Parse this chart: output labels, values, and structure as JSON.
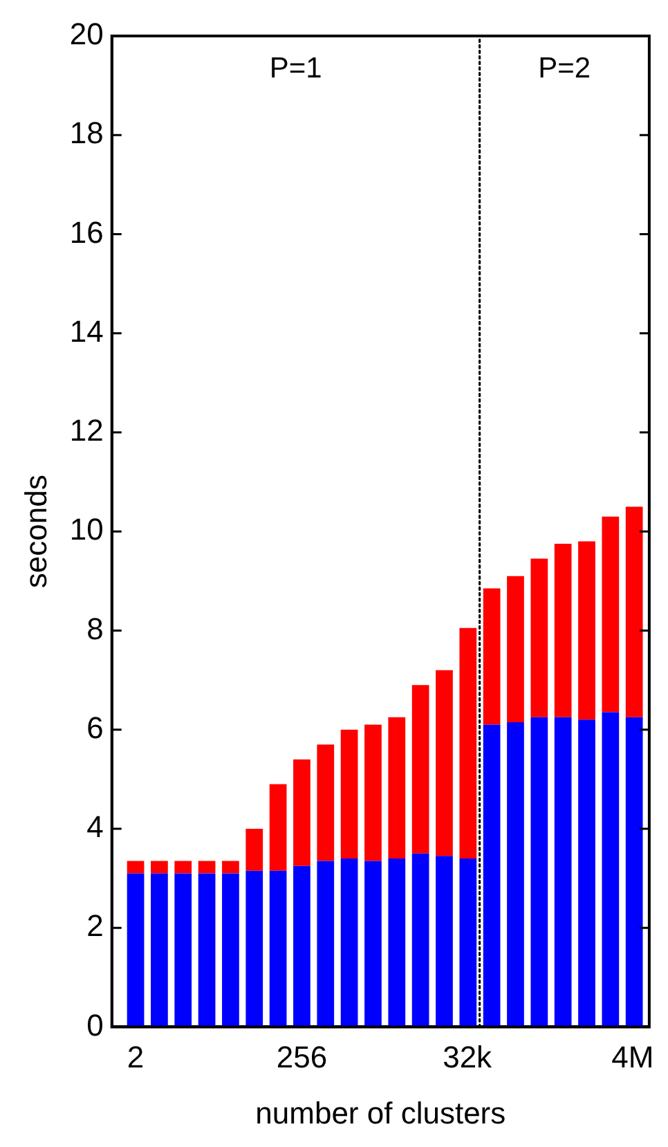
{
  "chart_data": {
    "type": "bar",
    "stacked": true,
    "log": "x",
    "xlabel": "number of clusters",
    "ylabel": "seconds",
    "x": [
      2,
      4,
      8,
      16,
      32,
      64,
      128,
      256,
      512,
      1024,
      2048,
      4096,
      8192,
      16384,
      32768,
      65536,
      131072,
      262144,
      524288,
      1048576,
      2097152,
      4194304
    ],
    "series": [
      {
        "color": "#0000ff",
        "values": [
          3.1,
          3.1,
          3.1,
          3.1,
          3.1,
          3.15,
          3.15,
          3.25,
          3.35,
          3.4,
          3.35,
          3.4,
          3.5,
          3.45,
          3.4,
          6.1,
          6.15,
          6.25,
          6.25,
          6.2,
          6.35,
          6.25
        ]
      },
      {
        "color": "#ff0000",
        "values": [
          0.25,
          0.25,
          0.25,
          0.25,
          0.25,
          0.85,
          1.75,
          2.15,
          2.35,
          2.6,
          2.75,
          2.85,
          3.4,
          3.75,
          4.65,
          2.75,
          2.95,
          3.2,
          3.5,
          3.6,
          3.95,
          4.25
        ]
      }
    ],
    "xlim": [
      1,
      6500000
    ],
    "xticks": [
      {
        "value": 2,
        "label": "2"
      },
      {
        "value": 256,
        "label": "256"
      },
      {
        "value": 32000,
        "label": "32k"
      },
      {
        "value": 4000000,
        "label": "4M"
      }
    ],
    "ylim": [
      0,
      20
    ],
    "yticks": [
      0,
      2,
      4,
      6,
      8,
      10,
      12,
      14,
      16,
      18,
      20
    ],
    "ref_lines": [
      {
        "axis": "x",
        "value": 46000,
        "line_style": "dotted",
        "color": "#000000"
      }
    ],
    "annotations": [
      "P=1",
      "P=2"
    ],
    "grid": false,
    "legend": false
  }
}
